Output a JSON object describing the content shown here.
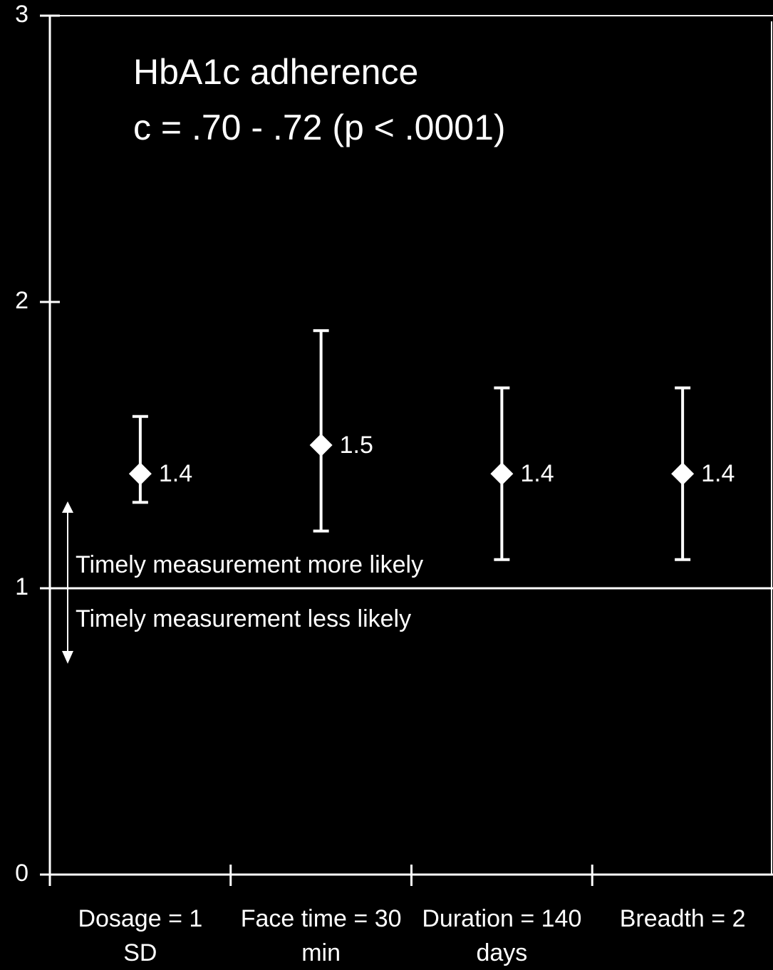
{
  "chart_data": {
    "type": "errorbar",
    "title": "HbA1c adherence",
    "subtitle": "c = .70 - .72 (p < .0001)",
    "annotations": [
      "Timely measurement more likely",
      "Timely measurement less likely"
    ],
    "categories": [
      "Dosage = 1 SD",
      "Face time = 30 min",
      "Duration = 140 days",
      "Breadth = 2"
    ],
    "values": [
      1.4,
      1.5,
      1.4,
      1.4
    ],
    "lower": [
      1.3,
      1.2,
      1.1,
      1.1
    ],
    "upper": [
      1.6,
      1.9,
      1.7,
      1.7
    ],
    "color": "#ffffff",
    "reference_line": 1,
    "ylim": [
      0,
      3
    ],
    "yticks": [
      0,
      1,
      2,
      3
    ]
  }
}
